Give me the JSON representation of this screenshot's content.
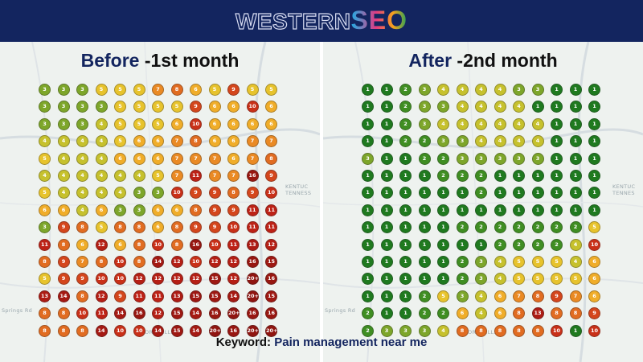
{
  "brand": {
    "logo_part1": "WESTERN",
    "logo_part2": "SEO"
  },
  "colors": {
    "header_bg": "#13255f",
    "accent_text": "#13255f",
    "scale": {
      "1": "#1f7a1f",
      "2": "#3f8e22",
      "3": "#7da62a",
      "4": "#c6c12d",
      "5": "#e7c32c",
      "6": "#f0ad29",
      "7": "#ea8a24",
      "8": "#e16c21",
      "9": "#d4461c",
      "10": "#c93018",
      "11": "#bd2216",
      "12": "#b51f15",
      "13": "#ad1c14",
      "14": "#a51a13",
      "15": "#9e1812",
      "16": "#981711",
      "20+": "#901510"
    }
  },
  "panels": {
    "before": {
      "title_accent": "Before",
      "title_rest": " -1st month",
      "map_labels": [
        "KENTUC",
        "TENNESS",
        "FORK HILLS",
        "Springs Rd",
        "Dale"
      ],
      "grid": [
        [
          "3",
          "3",
          "3",
          "5",
          "5",
          "5",
          "7",
          "8",
          "6",
          "5",
          "9",
          "5",
          "5"
        ],
        [
          "3",
          "3",
          "3",
          "3",
          "5",
          "5",
          "5",
          "5",
          "9",
          "6",
          "6",
          "10",
          "6"
        ],
        [
          "3",
          "3",
          "3",
          "4",
          "5",
          "5",
          "5",
          "6",
          "10",
          "6",
          "6",
          "6",
          "6"
        ],
        [
          "4",
          "4",
          "4",
          "4",
          "5",
          "6",
          "6",
          "7",
          "8",
          "6",
          "6",
          "7",
          "7"
        ],
        [
          "5",
          "4",
          "4",
          "4",
          "6",
          "6",
          "6",
          "7",
          "7",
          "7",
          "6",
          "7",
          "8"
        ],
        [
          "4",
          "4",
          "4",
          "4",
          "4",
          "4",
          "5",
          "7",
          "11",
          "7",
          "7",
          "16",
          "9"
        ],
        [
          "5",
          "4",
          "4",
          "4",
          "4",
          "3",
          "3",
          "10",
          "9",
          "9",
          "8",
          "9",
          "10"
        ],
        [
          "6",
          "6",
          "4",
          "6",
          "3",
          "3",
          "6",
          "6",
          "8",
          "9",
          "9",
          "11",
          "11"
        ],
        [
          "3",
          "9",
          "8",
          "5",
          "8",
          "8",
          "6",
          "8",
          "9",
          "9",
          "10",
          "11",
          "11"
        ],
        [
          "11",
          "8",
          "6",
          "12",
          "6",
          "8",
          "10",
          "8",
          "16",
          "10",
          "11",
          "13",
          "12"
        ],
        [
          "8",
          "9",
          "7",
          "8",
          "10",
          "8",
          "14",
          "12",
          "10",
          "12",
          "12",
          "16",
          "15"
        ],
        [
          "5",
          "9",
          "9",
          "10",
          "10",
          "12",
          "12",
          "12",
          "12",
          "15",
          "12",
          "20+",
          "16"
        ],
        [
          "13",
          "14",
          "8",
          "12",
          "9",
          "11",
          "11",
          "13",
          "15",
          "15",
          "14",
          "20+",
          "15"
        ],
        [
          "8",
          "8",
          "10",
          "11",
          "14",
          "16",
          "12",
          "15",
          "14",
          "16",
          "20+",
          "16",
          "16"
        ],
        [
          "8",
          "8",
          "8",
          "14",
          "10",
          "10",
          "14",
          "15",
          "14",
          "20+",
          "16",
          "20+",
          "20+"
        ]
      ]
    },
    "after": {
      "title_accent": "After",
      "title_rest": " -2nd month",
      "map_labels": [
        "KENTUC",
        "TENNES",
        "FORK HILLS",
        "Springs Rd",
        "Dale"
      ],
      "grid": [
        [
          "1",
          "1",
          "2",
          "3",
          "4",
          "4",
          "4",
          "4",
          "3",
          "3",
          "1",
          "1",
          "1"
        ],
        [
          "1",
          "1",
          "2",
          "3",
          "3",
          "4",
          "4",
          "4",
          "4",
          "1",
          "1",
          "1",
          "1"
        ],
        [
          "1",
          "1",
          "2",
          "3",
          "4",
          "4",
          "4",
          "4",
          "4",
          "4",
          "1",
          "1",
          "1"
        ],
        [
          "1",
          "1",
          "2",
          "2",
          "3",
          "3",
          "4",
          "4",
          "4",
          "4",
          "1",
          "1",
          "1"
        ],
        [
          "3",
          "1",
          "1",
          "2",
          "2",
          "3",
          "3",
          "3",
          "3",
          "3",
          "1",
          "1",
          "1"
        ],
        [
          "1",
          "1",
          "1",
          "1",
          "2",
          "2",
          "2",
          "1",
          "1",
          "1",
          "1",
          "1",
          "1"
        ],
        [
          "1",
          "1",
          "1",
          "1",
          "1",
          "1",
          "2",
          "1",
          "1",
          "1",
          "1",
          "1",
          "1"
        ],
        [
          "1",
          "1",
          "1",
          "1",
          "1",
          "1",
          "1",
          "1",
          "1",
          "1",
          "1",
          "1",
          "1"
        ],
        [
          "1",
          "1",
          "1",
          "1",
          "1",
          "2",
          "2",
          "2",
          "2",
          "2",
          "2",
          "2",
          "5"
        ],
        [
          "1",
          "1",
          "1",
          "1",
          "1",
          "1",
          "1",
          "2",
          "2",
          "2",
          "2",
          "4",
          "10"
        ],
        [
          "1",
          "1",
          "1",
          "1",
          "1",
          "2",
          "3",
          "4",
          "5",
          "5",
          "5",
          "4",
          "6"
        ],
        [
          "1",
          "1",
          "1",
          "1",
          "1",
          "2",
          "3",
          "4",
          "5",
          "5",
          "5",
          "5",
          "6"
        ],
        [
          "1",
          "1",
          "1",
          "2",
          "5",
          "3",
          "4",
          "6",
          "7",
          "8",
          "9",
          "7",
          "6"
        ],
        [
          "2",
          "1",
          "1",
          "2",
          "2",
          "6",
          "4",
          "6",
          "8",
          "13",
          "8",
          "8",
          "9"
        ],
        [
          "2",
          "3",
          "3",
          "3",
          "4",
          "8",
          "8",
          "8",
          "8",
          "8",
          "10",
          "1",
          "10"
        ]
      ]
    }
  },
  "footer": {
    "keyword_label": "Keyword: ",
    "keyword_value": "Pain management near me"
  }
}
